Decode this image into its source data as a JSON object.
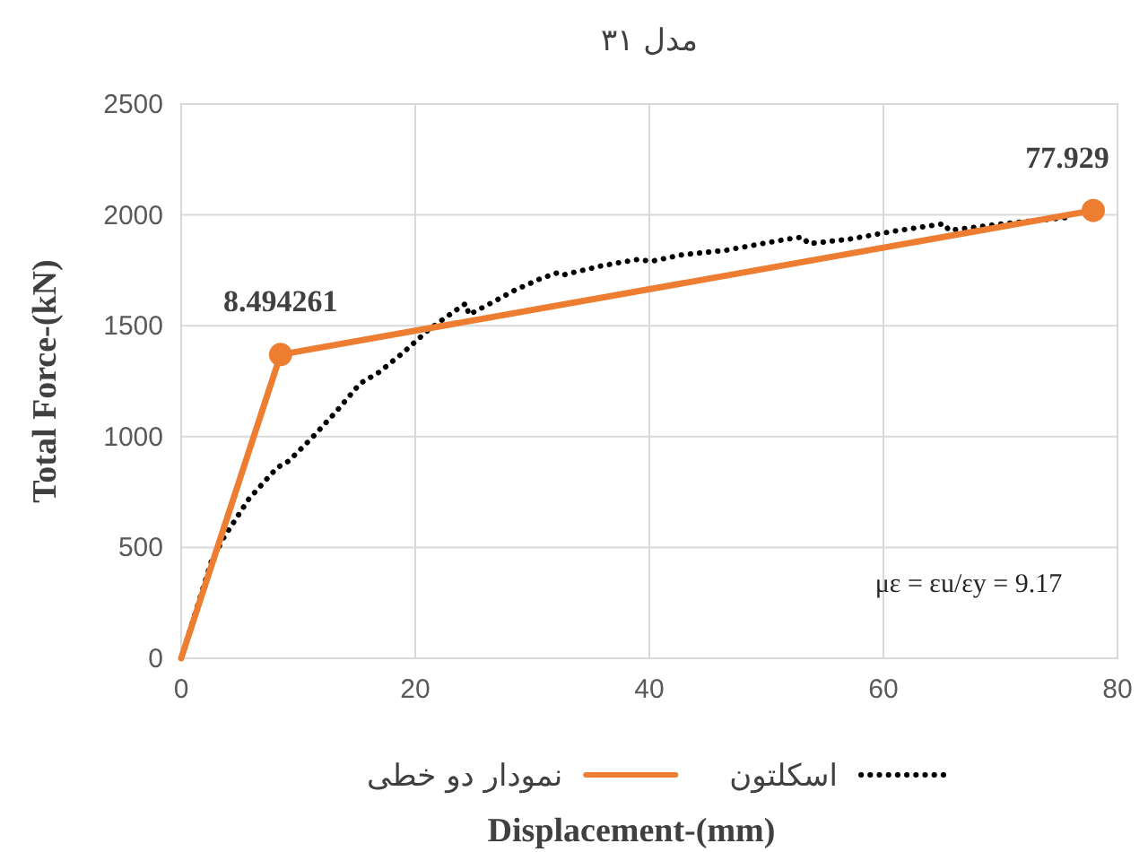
{
  "chart_data": {
    "type": "line",
    "title": "مدل ۳۱",
    "xlabel": "Displacement-(mm)",
    "ylabel": "Total Force-(kN)",
    "xlim": [
      0,
      80
    ],
    "xticks": [
      0,
      20,
      40,
      60,
      80
    ],
    "ylim": [
      0,
      2500
    ],
    "yticks": [
      0,
      500,
      1000,
      1500,
      2000,
      2500
    ],
    "grid": true,
    "legend": "bottom",
    "annotations": [
      "με = εu/εy = 9.17",
      {
        "text": "8.494261",
        "x": 8.494261,
        "y": 1370
      },
      {
        "text": "77.929",
        "x": 77.929,
        "y": 2020
      }
    ],
    "series": [
      {
        "name": "اسکلتون",
        "color": "#000000",
        "line_style": "dotted",
        "marker": "none",
        "x": [
          0,
          2.6,
          3.7,
          5.8,
          8.2,
          9.2,
          11.1,
          13.2,
          15.3,
          16.9,
          19,
          21.1,
          23.2,
          24.3,
          24.6,
          26.4,
          28.5,
          30.6,
          32.2,
          32.7,
          35.9,
          39.1,
          40.1,
          42.8,
          46.5,
          51.7,
          53.1,
          53.6,
          57.0,
          61.3,
          65.2,
          65.6,
          70.2,
          76.0
        ],
        "values": [
          0,
          440,
          550,
          720,
          860,
          890,
          990,
          1110,
          1240,
          1290,
          1380,
          1480,
          1560,
          1600,
          1550,
          1600,
          1660,
          1710,
          1740,
          1730,
          1770,
          1800,
          1790,
          1820,
          1840,
          1890,
          1900,
          1870,
          1890,
          1930,
          1960,
          1930,
          1960,
          1990
        ]
      },
      {
        "name": "نمودار دو خطی",
        "color": "#ed7d31",
        "line_style": "solid",
        "marker": "none",
        "x": [
          0,
          8.494261,
          77.929
        ],
        "values": [
          0,
          1370,
          2020
        ]
      },
      {
        "type": "scatter",
        "color": "#ed7d31",
        "marker": "circle",
        "x": [
          8.494261,
          77.929
        ],
        "values": [
          1370,
          2020
        ]
      }
    ]
  }
}
